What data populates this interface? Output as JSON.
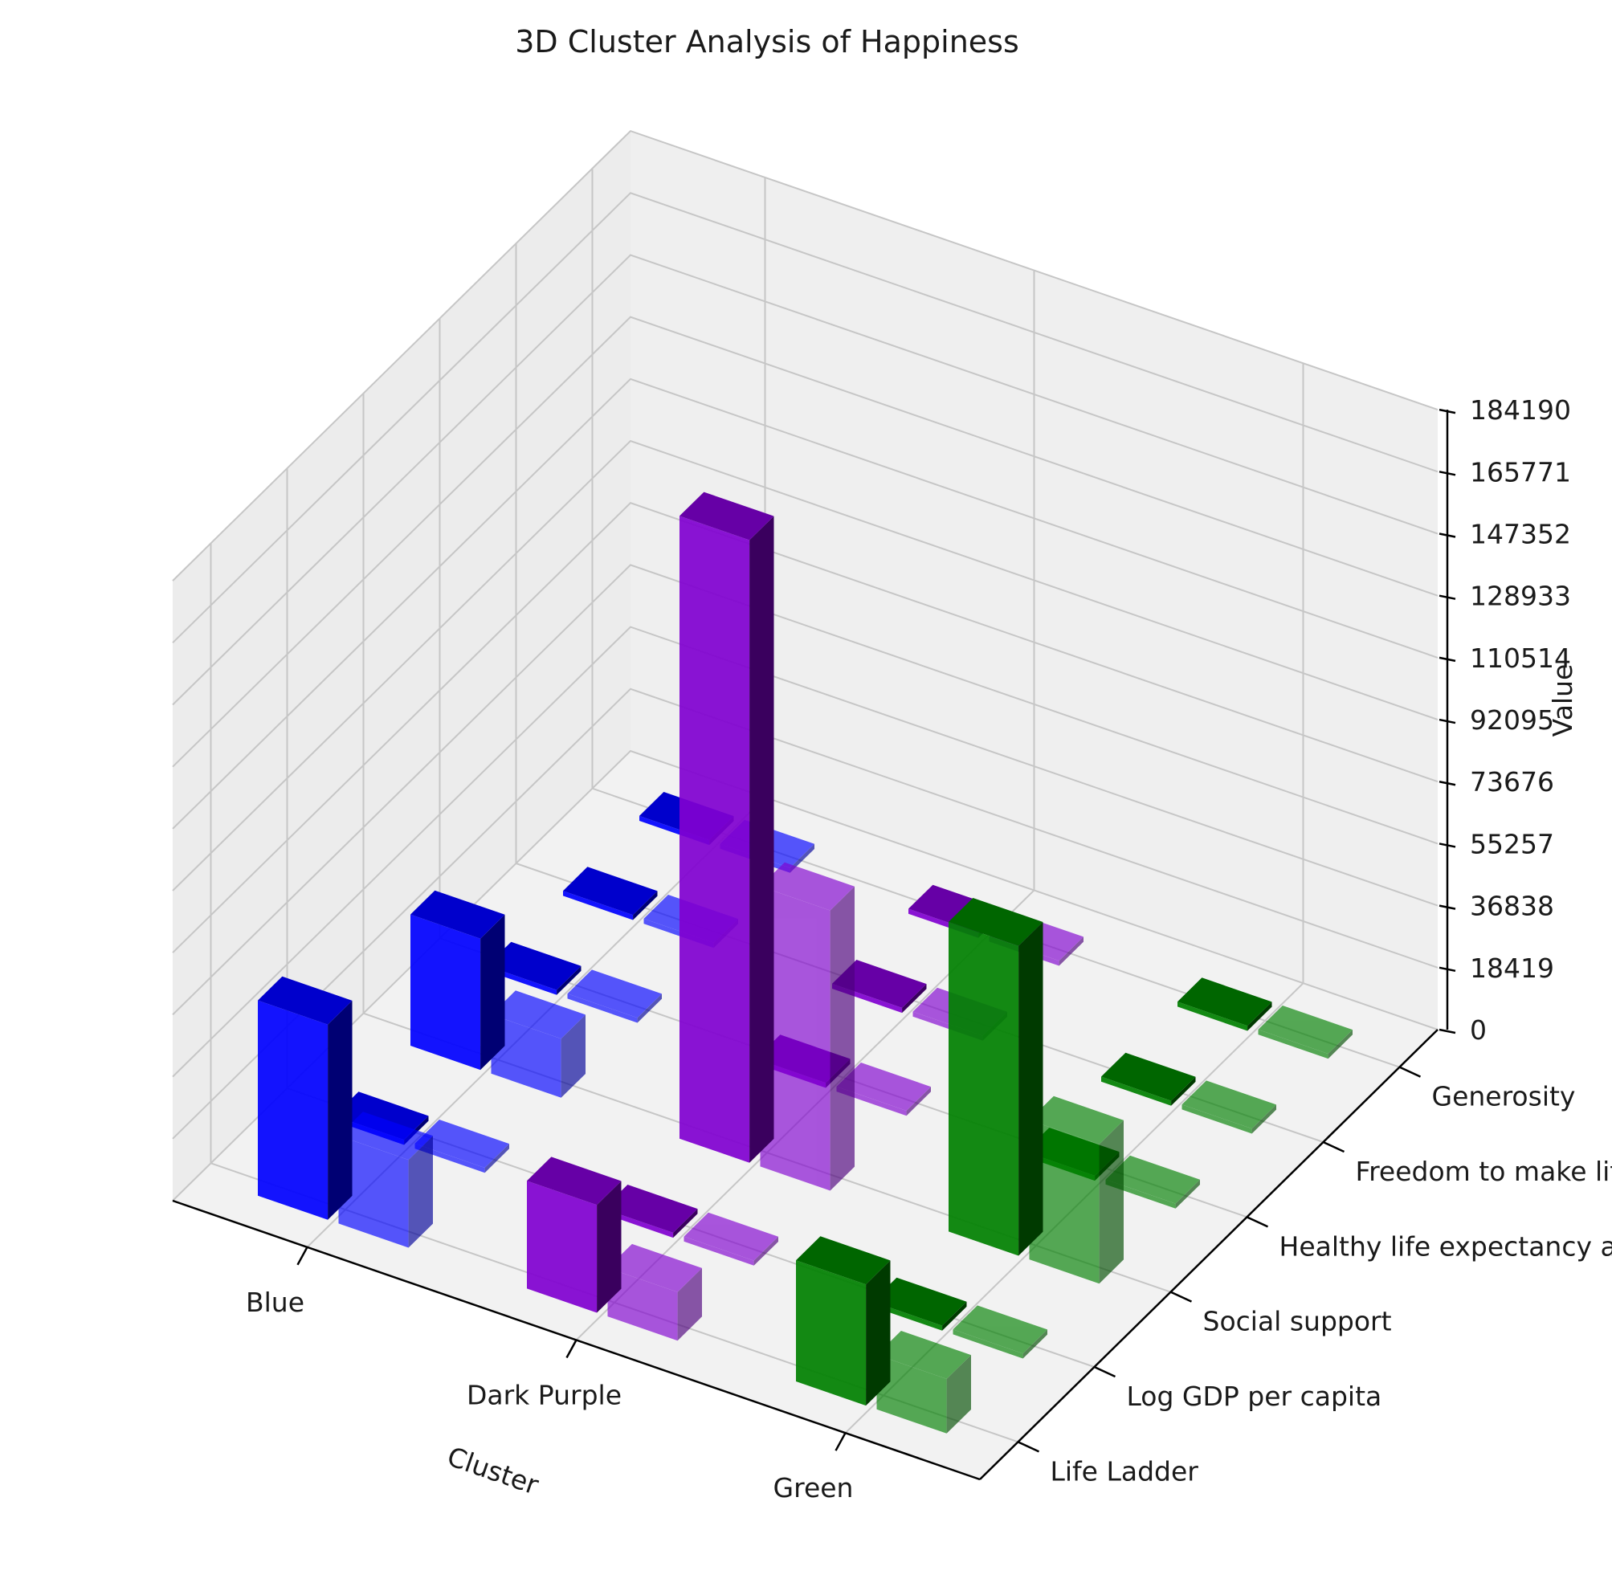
{
  "chart_data": {
    "type": "bar3d",
    "title": "3D Cluster Analysis of Happiness",
    "xlabel": "Cluster",
    "ylabel": "",
    "zlabel": "Value",
    "clusters": [
      "Blue",
      "Dark Purple",
      "Green"
    ],
    "metrics": [
      "Life Ladder",
      "Log GDP per capita",
      "Social support",
      "Healthy life expectancy at birth",
      "Freedom to make life choices",
      "Generosity"
    ],
    "z_ticks": [
      "0",
      "18419",
      "36838",
      "55257",
      "73676",
      "92095",
      "110514",
      "128933",
      "147352",
      "165771",
      "184190"
    ],
    "zlim": [
      0,
      184190
    ],
    "colors": [
      "#0000ff",
      "#8000d0",
      "#008000"
    ],
    "series": [
      {
        "name": "Blue",
        "values": [
          58000,
          0,
          39000,
          0,
          0,
          0
        ]
      },
      {
        "name": "Dark Purple",
        "values": [
          32000,
          0,
          185000,
          0,
          0,
          0
        ]
      },
      {
        "name": "Green",
        "values": [
          36000,
          0,
          92000,
          0,
          0,
          0
        ]
      }
    ]
  }
}
